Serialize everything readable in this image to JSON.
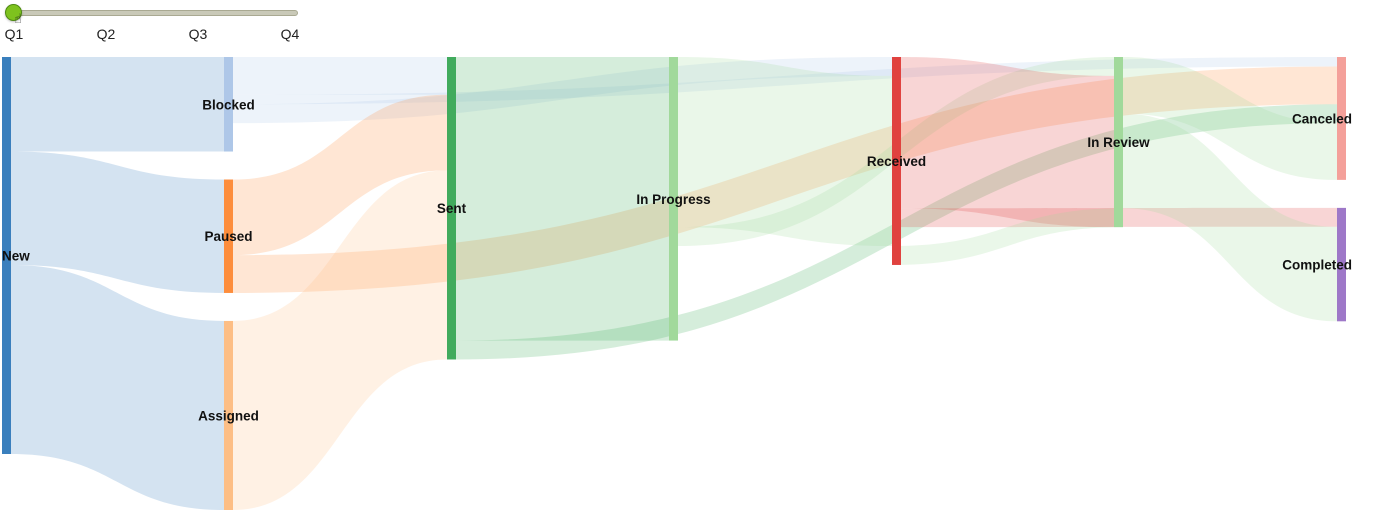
{
  "slider": {
    "ticks": [
      "Q1",
      "Q2",
      "Q3",
      "Q4"
    ],
    "selected": "Q1",
    "thumb_color": "#7ec21e"
  },
  "chart_data": {
    "type": "sankey",
    "period": "Q1",
    "nodes": [
      {
        "id": "New",
        "label": "New",
        "color": "#3a7fbd",
        "column": 0
      },
      {
        "id": "Blocked",
        "label": "Blocked",
        "color": "#aec7e8",
        "column": 1
      },
      {
        "id": "Paused",
        "label": "Paused",
        "color": "#fd8d3c",
        "column": 1
      },
      {
        "id": "Assigned",
        "label": "Assigned",
        "color": "#fdbe85",
        "column": 1
      },
      {
        "id": "Sent",
        "label": "Sent",
        "color": "#41ab5d",
        "column": 2
      },
      {
        "id": "InProgress",
        "label": "In Progress",
        "color": "#a1d99b",
        "column": 3
      },
      {
        "id": "Received",
        "label": "Received",
        "color": "#e0423f",
        "column": 4
      },
      {
        "id": "InReview",
        "label": "In Review",
        "color": "#a1d99b",
        "column": 5
      },
      {
        "id": "Canceled",
        "label": "Canceled",
        "color": "#f4a09a",
        "column": 6
      },
      {
        "id": "Completed",
        "label": "Completed",
        "color": "#9e78c8",
        "column": 6
      }
    ],
    "links": [
      {
        "source": "New",
        "target": "Blocked",
        "value": 10
      },
      {
        "source": "New",
        "target": "Paused",
        "value": 12
      },
      {
        "source": "New",
        "target": "Assigned",
        "value": 20
      },
      {
        "source": "Blocked",
        "target": "Sent",
        "value": 4
      },
      {
        "source": "Blocked",
        "target": "Canceled",
        "value": 1
      },
      {
        "source": "Blocked",
        "target": "Received",
        "value": 2
      },
      {
        "source": "Paused",
        "target": "Sent",
        "value": 8
      },
      {
        "source": "Paused",
        "target": "Canceled",
        "value": 4
      },
      {
        "source": "Assigned",
        "target": "Sent",
        "value": 20
      },
      {
        "source": "Sent",
        "target": "InProgress",
        "value": 30
      },
      {
        "source": "Sent",
        "target": "Canceled",
        "value": 2
      },
      {
        "source": "InProgress",
        "target": "Received",
        "value": 18
      },
      {
        "source": "InProgress",
        "target": "InReview",
        "value": 2
      },
      {
        "source": "Received",
        "target": "InReview",
        "value": 16
      },
      {
        "source": "Received",
        "target": "Completed",
        "value": 2
      },
      {
        "source": "InReview",
        "target": "Canceled",
        "value": 6
      },
      {
        "source": "InReview",
        "target": "Completed",
        "value": 10
      },
      {
        "source": "InReview",
        "target": "Received",
        "value": 2
      }
    ]
  }
}
